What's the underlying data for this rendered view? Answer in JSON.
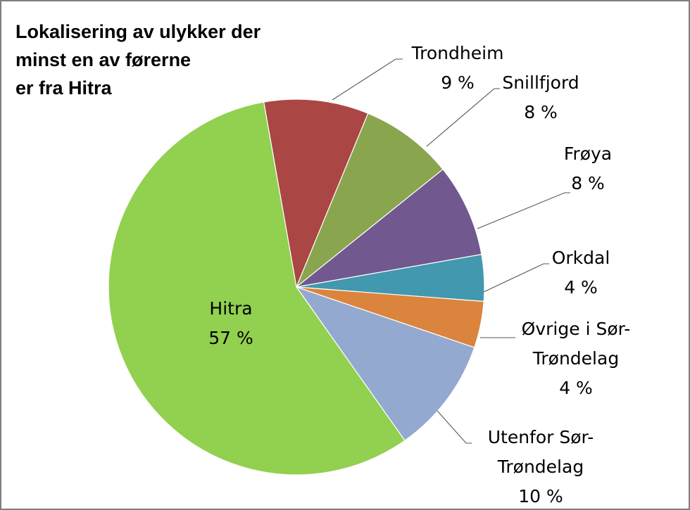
{
  "chart_data": {
    "type": "pie",
    "title": "Lokalisering av ulykker der minst en av førerne er fra Hitra",
    "title_lines": [
      "Lokalisering av ulykker der",
      "minst en av førerne",
      "er fra Hitra"
    ],
    "start_angle_deg": 350,
    "direction": "clockwise",
    "slices": [
      {
        "name": "Trondheim",
        "value": 9,
        "value_label": "9 %",
        "label_lines": [
          "Trondheim"
        ],
        "color": "#AA4643"
      },
      {
        "name": "Snillfjord",
        "value": 8,
        "value_label": "8 %",
        "label_lines": [
          "Snillfjord"
        ],
        "color": "#89A54E"
      },
      {
        "name": "Frøya",
        "value": 8,
        "value_label": "8 %",
        "label_lines": [
          "Frøya"
        ],
        "color": "#71588F"
      },
      {
        "name": "Orkdal",
        "value": 4,
        "value_label": "4 %",
        "label_lines": [
          "Orkdal"
        ],
        "color": "#4198AF"
      },
      {
        "name": "Øvrige i Sør-Trøndelag",
        "value": 4,
        "value_label": "4 %",
        "label_lines": [
          "Øvrige i Sør-",
          "Trøndelag"
        ],
        "color": "#DB843D"
      },
      {
        "name": "Utenfor Sør-Trøndelag",
        "value": 10,
        "value_label": "10 %",
        "label_lines": [
          "Utenfor Sør-",
          "Trøndelag"
        ],
        "color": "#93A9CF"
      },
      {
        "name": "Hitra",
        "value": 57,
        "value_label": "57 %",
        "label_lines": [
          "Hitra"
        ],
        "color": "#92D050"
      }
    ]
  }
}
